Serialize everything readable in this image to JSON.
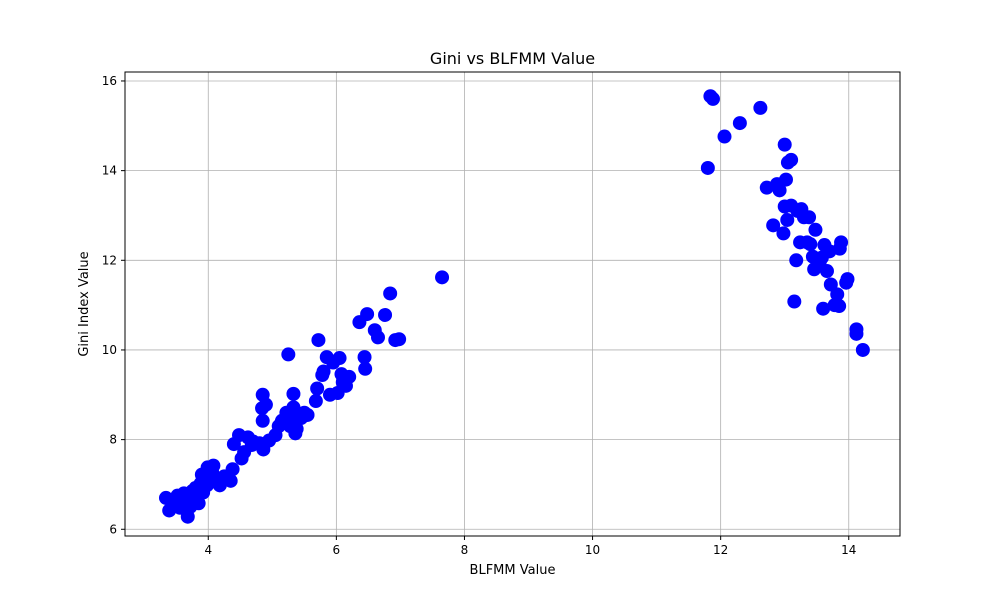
{
  "chart_data": {
    "type": "scatter",
    "title": "Gini vs BLFMM Value",
    "xlabel": "BLFMM Value",
    "ylabel": "Gini Index Value",
    "xlim": [
      2.7,
      14.8
    ],
    "ylim": [
      5.85,
      16.2
    ],
    "xticks": [
      4,
      6,
      8,
      10,
      12,
      14
    ],
    "yticks": [
      6,
      8,
      10,
      12,
      14,
      16
    ],
    "grid": true,
    "marker_color": "#0000ff",
    "points": [
      [
        3.34,
        6.7
      ],
      [
        3.39,
        6.42
      ],
      [
        3.49,
        6.6
      ],
      [
        3.52,
        6.75
      ],
      [
        3.56,
        6.48
      ],
      [
        3.6,
        6.62
      ],
      [
        3.62,
        6.8
      ],
      [
        3.65,
        6.55
      ],
      [
        3.68,
        6.28
      ],
      [
        3.7,
        6.7
      ],
      [
        3.72,
        6.5
      ],
      [
        3.75,
        6.85
      ],
      [
        3.78,
        6.62
      ],
      [
        3.8,
        6.92
      ],
      [
        3.82,
        6.72
      ],
      [
        3.85,
        6.58
      ],
      [
        3.88,
        7.02
      ],
      [
        3.9,
        7.22
      ],
      [
        3.92,
        6.82
      ],
      [
        3.95,
        7.1
      ],
      [
        3.98,
        6.98
      ],
      [
        3.99,
        7.38
      ],
      [
        4.02,
        7.18
      ],
      [
        4.06,
        7.28
      ],
      [
        4.08,
        7.42
      ],
      [
        4.12,
        7.08
      ],
      [
        4.18,
        6.98
      ],
      [
        4.25,
        7.18
      ],
      [
        4.35,
        7.08
      ],
      [
        4.38,
        7.34
      ],
      [
        4.4,
        7.9
      ],
      [
        4.48,
        8.1
      ],
      [
        4.52,
        7.58
      ],
      [
        4.56,
        7.72
      ],
      [
        4.62,
        8.05
      ],
      [
        4.68,
        7.88
      ],
      [
        4.7,
        7.96
      ],
      [
        4.8,
        7.92
      ],
      [
        4.85,
        8.42
      ],
      [
        4.86,
        7.78
      ],
      [
        4.84,
        8.7
      ],
      [
        4.85,
        9.0
      ],
      [
        4.9,
        8.78
      ],
      [
        4.95,
        7.98
      ],
      [
        5.05,
        8.1
      ],
      [
        5.1,
        8.3
      ],
      [
        5.15,
        8.42
      ],
      [
        5.22,
        8.6
      ],
      [
        5.25,
        9.9
      ],
      [
        5.28,
        8.3
      ],
      [
        5.3,
        8.46
      ],
      [
        5.33,
        8.72
      ],
      [
        5.33,
        9.02
      ],
      [
        5.36,
        8.14
      ],
      [
        5.38,
        8.24
      ],
      [
        5.45,
        8.48
      ],
      [
        5.5,
        8.6
      ],
      [
        5.55,
        8.55
      ],
      [
        5.68,
        8.86
      ],
      [
        5.7,
        9.14
      ],
      [
        5.72,
        10.22
      ],
      [
        5.78,
        9.44
      ],
      [
        5.8,
        9.52
      ],
      [
        5.85,
        9.84
      ],
      [
        5.9,
        9.0
      ],
      [
        5.95,
        9.72
      ],
      [
        6.02,
        9.04
      ],
      [
        6.05,
        9.82
      ],
      [
        6.08,
        9.46
      ],
      [
        6.1,
        9.28
      ],
      [
        6.15,
        9.2
      ],
      [
        6.2,
        9.4
      ],
      [
        6.36,
        10.62
      ],
      [
        6.44,
        9.84
      ],
      [
        6.45,
        9.58
      ],
      [
        6.48,
        10.8
      ],
      [
        6.6,
        10.44
      ],
      [
        6.65,
        10.28
      ],
      [
        6.76,
        10.78
      ],
      [
        6.84,
        11.26
      ],
      [
        6.92,
        10.22
      ],
      [
        6.98,
        10.24
      ],
      [
        7.65,
        11.62
      ],
      [
        11.8,
        14.06
      ],
      [
        11.84,
        15.66
      ],
      [
        11.88,
        15.6
      ],
      [
        12.06,
        14.76
      ],
      [
        12.3,
        15.06
      ],
      [
        12.62,
        15.4
      ],
      [
        12.72,
        13.62
      ],
      [
        12.82,
        12.78
      ],
      [
        12.88,
        13.7
      ],
      [
        12.92,
        13.56
      ],
      [
        12.98,
        12.6
      ],
      [
        13.0,
        13.2
      ],
      [
        13.0,
        14.58
      ],
      [
        13.02,
        13.8
      ],
      [
        13.04,
        12.9
      ],
      [
        13.05,
        14.18
      ],
      [
        13.1,
        14.24
      ],
      [
        13.1,
        13.22
      ],
      [
        13.15,
        11.08
      ],
      [
        13.18,
        12.0
      ],
      [
        13.2,
        13.1
      ],
      [
        13.24,
        12.4
      ],
      [
        13.26,
        13.14
      ],
      [
        13.3,
        12.96
      ],
      [
        13.35,
        12.4
      ],
      [
        13.38,
        12.96
      ],
      [
        13.4,
        12.36
      ],
      [
        13.44,
        12.08
      ],
      [
        13.46,
        11.8
      ],
      [
        13.48,
        12.68
      ],
      [
        13.55,
        11.98
      ],
      [
        13.58,
        12.06
      ],
      [
        13.6,
        10.92
      ],
      [
        13.62,
        12.34
      ],
      [
        13.66,
        11.76
      ],
      [
        13.7,
        12.2
      ],
      [
        13.72,
        11.46
      ],
      [
        13.78,
        11.0
      ],
      [
        13.82,
        11.24
      ],
      [
        13.85,
        10.98
      ],
      [
        13.86,
        12.26
      ],
      [
        13.88,
        12.4
      ],
      [
        13.96,
        11.5
      ],
      [
        13.98,
        11.58
      ],
      [
        14.12,
        10.46
      ],
      [
        14.12,
        10.36
      ],
      [
        14.22,
        10.0
      ]
    ]
  }
}
